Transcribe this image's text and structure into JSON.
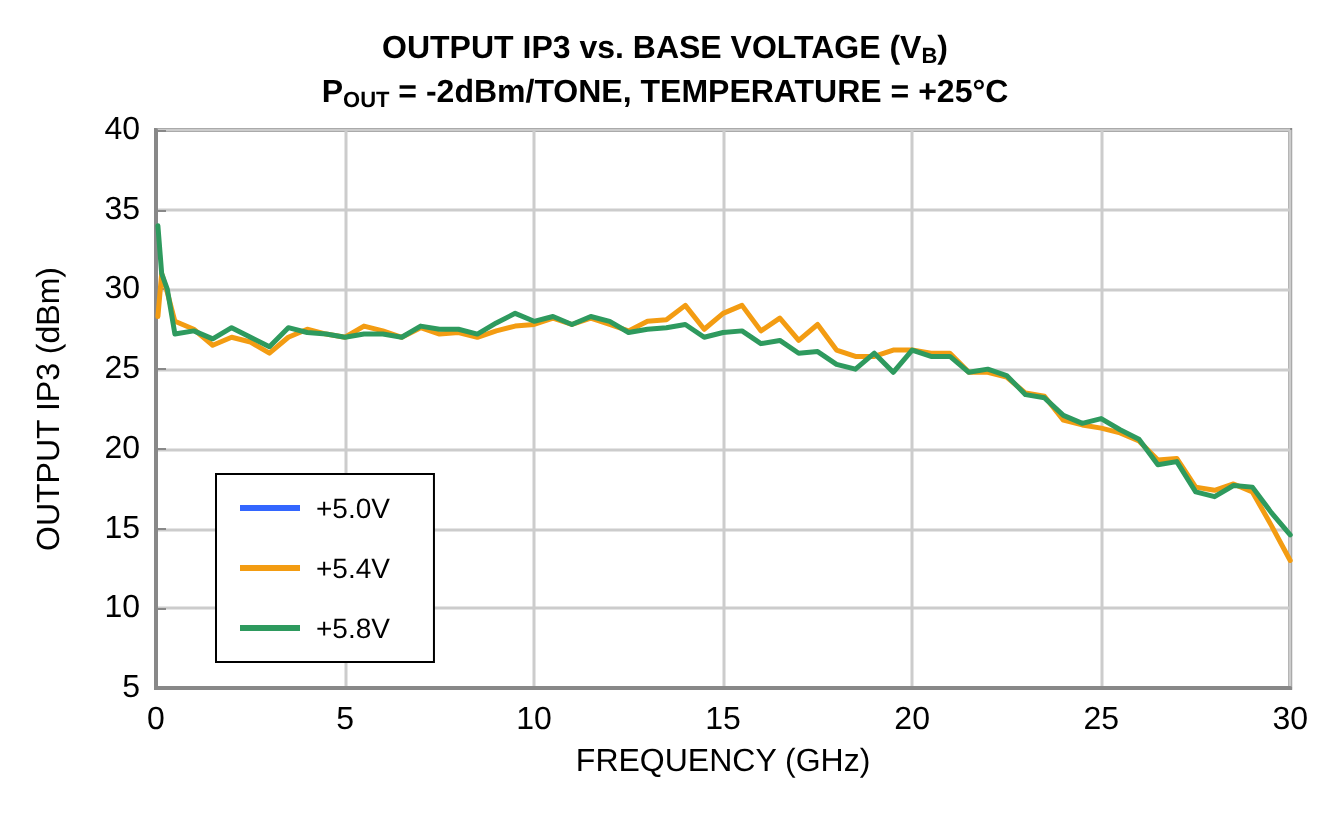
{
  "chart_data": {
    "type": "line",
    "title": "OUTPUT IP3 vs. BASE VOLTAGE (V$_{B}$)",
    "subtitle": "P$_{OUT}$ = -2dBm/TONE, TEMPERATURE = +25°C",
    "xlabel": "FREQUENCY (GHz)",
    "ylabel": "OUTPUT IP3 (dBm)",
    "x": [
      0.05,
      0.15,
      0.3,
      0.5,
      1,
      1.5,
      2,
      2.5,
      3,
      3.5,
      4,
      4.5,
      5,
      5.5,
      6,
      6.5,
      7,
      7.5,
      8,
      8.5,
      9,
      9.5,
      10,
      10.5,
      11,
      11.5,
      12,
      12.5,
      13,
      13.5,
      14,
      14.5,
      15,
      15.5,
      16,
      16.5,
      17,
      17.5,
      18,
      18.5,
      19,
      19.5,
      20,
      20.5,
      21,
      21.5,
      22,
      22.5,
      23,
      23.5,
      24,
      24.5,
      25,
      25.5,
      26,
      26.5,
      27,
      27.5,
      28,
      28.5,
      29,
      29.5,
      30
    ],
    "series": [
      {
        "name": "+5.0V",
        "color": "#3366ff",
        "values": [
          null,
          null,
          null,
          null,
          null,
          null,
          null,
          null,
          null,
          null,
          null,
          null,
          null,
          null,
          null,
          null,
          null,
          null,
          null,
          null,
          null,
          null,
          null,
          null,
          null,
          null,
          null,
          null,
          null,
          null,
          null,
          null,
          null,
          null,
          null,
          null,
          null,
          null,
          null,
          null,
          null,
          null,
          null,
          null,
          null,
          null,
          null,
          null,
          null,
          null,
          null,
          null,
          null,
          null,
          null,
          null,
          null,
          null,
          null,
          null,
          null,
          null,
          null
        ]
      },
      {
        "name": "+5.4V",
        "color": "#f39c12",
        "values": [
          28.3,
          31,
          29.8,
          28,
          27.5,
          26.5,
          27,
          26.7,
          26,
          27,
          27.5,
          27.2,
          27,
          27.7,
          27.4,
          27,
          27.6,
          27.2,
          27.3,
          27,
          27.4,
          27.7,
          27.8,
          28.2,
          27.8,
          28.2,
          27.8,
          27.4,
          28,
          28.1,
          29,
          27.5,
          28.5,
          29,
          27.4,
          28.2,
          26.8,
          27.8,
          26.2,
          25.8,
          25.8,
          26.2,
          26.2,
          26,
          26,
          24.8,
          24.8,
          24.5,
          23.5,
          23.3,
          21.8,
          21.5,
          21.3,
          21,
          20.5,
          19.3,
          19.4,
          17.6,
          17.4,
          17.8,
          17.3,
          15.2,
          13
        ]
      },
      {
        "name": "+5.8V",
        "color": "#2e9a5e",
        "values": [
          34,
          31,
          30,
          27.2,
          27.4,
          26.9,
          27.6,
          27,
          26.4,
          27.6,
          27.3,
          27.2,
          27,
          27.2,
          27.2,
          27,
          27.7,
          27.5,
          27.5,
          27.2,
          27.9,
          28.5,
          28,
          28.3,
          27.8,
          28.3,
          28,
          27.3,
          27.5,
          27.6,
          27.8,
          27,
          27.3,
          27.4,
          26.6,
          26.8,
          26,
          26.1,
          25.3,
          25,
          26,
          24.8,
          26.2,
          25.8,
          25.8,
          24.8,
          25,
          24.6,
          23.4,
          23.2,
          22.1,
          21.6,
          21.9,
          21.2,
          20.6,
          19,
          19.2,
          17.3,
          17,
          17.7,
          17.6,
          16,
          14.6
        ]
      }
    ],
    "xlim": [
      0,
      30
    ],
    "xticks": [
      0,
      5,
      10,
      15,
      20,
      25,
      30
    ],
    "ylim": [
      5,
      40
    ],
    "yticks": [
      5,
      10,
      15,
      20,
      25,
      30,
      35,
      40
    ],
    "grid": true,
    "legend": "bottom left",
    "marker": "none",
    "line_style": "solid"
  }
}
